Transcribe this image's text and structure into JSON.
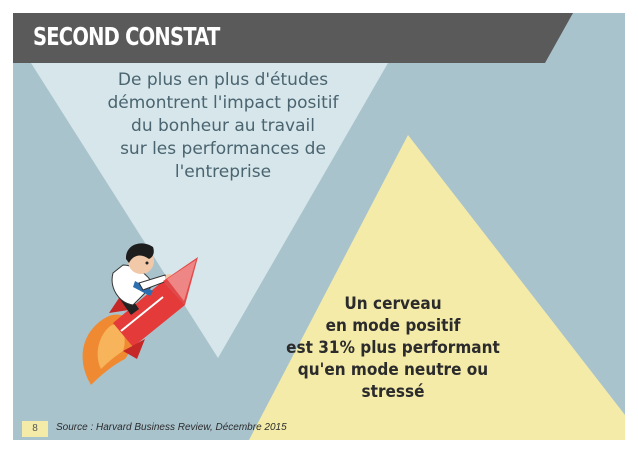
{
  "header": {
    "title": "SECOND CONSTAT"
  },
  "intro": {
    "lines": [
      "De plus en plus d'études",
      "démontrent l'impact positif",
      "du bonheur au travail",
      "sur les performances de",
      "l'entreprise"
    ]
  },
  "stat": {
    "lines": [
      "Un cerveau",
      "en mode positif",
      "est 31% plus performant",
      "qu'en mode neutre ou",
      "stressé"
    ]
  },
  "footer": {
    "page_number": "8",
    "source": "Source : Harvard Business Review, Décembre 2015"
  },
  "colors": {
    "background": "#a9c3cd",
    "title_band": "#5a5a5a",
    "light_triangle": "#d6e6ea",
    "yellow_triangle": "#f4eba9",
    "rocket_red": "#e43a3a",
    "flame_orange": "#f08a32"
  }
}
